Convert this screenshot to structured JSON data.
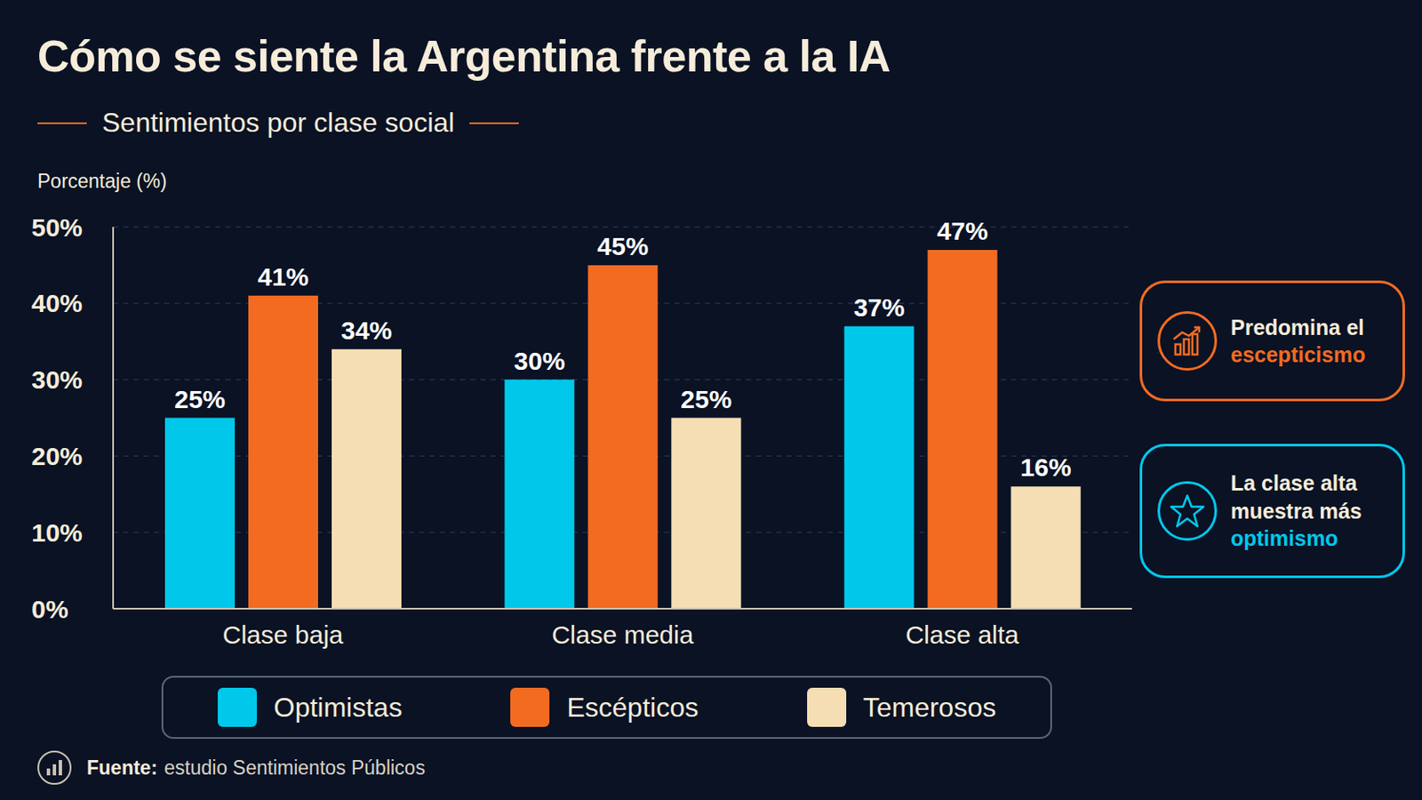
{
  "chart_data": {
    "type": "bar",
    "title": "Cómo se siente la Argentina frente a la IA",
    "subtitle": "Sentimientos por clase social",
    "y_label": "Porcentaje (%)",
    "categories": [
      "Clase baja",
      "Clase media",
      "Clase alta"
    ],
    "series": [
      {
        "name": "Optimistas",
        "color": "#00c8ea",
        "values": [
          25,
          30,
          37
        ],
        "value_labels": [
          "25%",
          "30%",
          "37%"
        ]
      },
      {
        "name": "Escépticos",
        "color": "#f26b21",
        "values": [
          41,
          45,
          47
        ],
        "value_labels": [
          "41%",
          "45%",
          "47%"
        ]
      },
      {
        "name": "Temerosos",
        "color": "#f5deb3",
        "values": [
          34,
          25,
          16
        ],
        "value_labels": [
          "34%",
          "25%",
          "16%"
        ]
      }
    ],
    "ylim": [
      0,
      50
    ],
    "yticks": [
      {
        "value": 0,
        "label": "0%"
      },
      {
        "value": 10,
        "label": "10%"
      },
      {
        "value": 20,
        "label": "20%"
      },
      {
        "value": 30,
        "label": "30%"
      },
      {
        "value": 40,
        "label": "40%"
      },
      {
        "value": 50,
        "label": "50%"
      }
    ],
    "grid": true,
    "legend": "bottom",
    "data_labels": true,
    "annotations": [
      {
        "text": "Predomina el escepticismo",
        "color": "#f26b21"
      },
      {
        "text": "La clase alta muestra más optimismo",
        "color": "#00c8ea"
      }
    ],
    "source": "Fuente: estudio Sentimientos Públicos"
  }
}
